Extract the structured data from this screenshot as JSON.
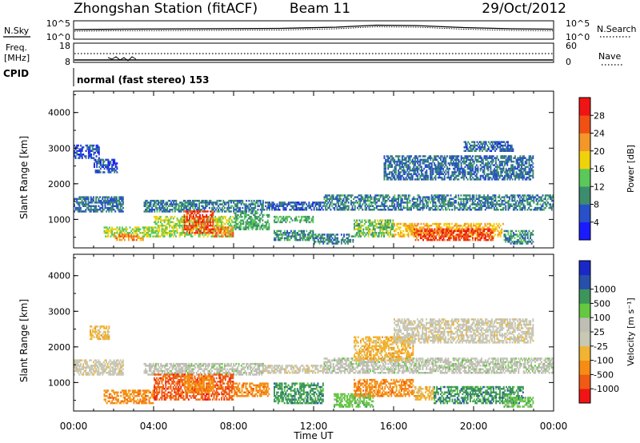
{
  "header": {
    "station": "Zhongshan Station (fitACF)",
    "beam": "Beam 11",
    "date": "29/Oct/2012"
  },
  "scan_panel": {
    "left_label": "N.Sky",
    "right_label": "N.Search",
    "left_ticks": [
      "10^5",
      "10^0"
    ],
    "right_ticks": [
      "10^5",
      "10^0"
    ]
  },
  "freq_panel": {
    "left_label_1": "Freq.",
    "left_label_2": "[MHz]",
    "right_label": "Nave",
    "left_ticks": [
      "18",
      "8"
    ],
    "right_ticks": [
      "60",
      "0"
    ]
  },
  "cpid": {
    "label": "CPID",
    "mode_text": "normal (fast stereo) 153"
  },
  "icons": {
    "dotted-line": "legend-dotted-line-icon"
  },
  "colors": {
    "power": [
      "#1a1aff",
      "#2850c8",
      "#3c8c6e",
      "#5ac85a",
      "#f0d20a",
      "#f59628",
      "#f05014",
      "#f01414"
    ],
    "velocity": [
      "#f01414",
      "#f05a14",
      "#f58c14",
      "#f0b432",
      "#c8c8b4",
      "#bebeb4",
      "#64c840",
      "#3c965a",
      "#2850aa",
      "#1a28c8"
    ]
  },
  "chart_data": [
    {
      "type": "heatmap",
      "title": "",
      "xlabel": "",
      "ylabel": "Slant Range [km]",
      "x_ticks": [
        "00:00",
        "04:00",
        "08:00",
        "12:00",
        "16:00",
        "20:00",
        "00:00"
      ],
      "y_ticks": [
        1000,
        2000,
        3000,
        4000
      ],
      "ylim": [
        200,
        4600
      ],
      "colorbar": {
        "label": "Power [dB]",
        "ticks": [
          "4",
          "8",
          "12",
          "16",
          "20",
          "24",
          "28"
        ],
        "range": [
          0,
          32
        ]
      },
      "regions": [
        {
          "t": [
            0.0,
            2.5
          ],
          "r": [
            1200,
            1650
          ],
          "v": 8
        },
        {
          "t": [
            3.5,
            9.5
          ],
          "r": [
            1200,
            1550
          ],
          "v": 9
        },
        {
          "t": [
            9.5,
            12.5
          ],
          "r": [
            1250,
            1500
          ],
          "v": 7
        },
        {
          "t": [
            12.5,
            24.0
          ],
          "r": [
            1250,
            1700
          ],
          "v": 9
        },
        {
          "t": [
            0.0,
            1.3
          ],
          "r": [
            2700,
            3100
          ],
          "v": 6
        },
        {
          "t": [
            1.0,
            2.2
          ],
          "r": [
            2300,
            2700
          ],
          "v": 6
        },
        {
          "t": [
            15.5,
            23.0
          ],
          "r": [
            2100,
            2800
          ],
          "v": 8
        },
        {
          "t": [
            19.5,
            22.0
          ],
          "r": [
            2900,
            3200
          ],
          "v": 7
        },
        {
          "t": [
            1.5,
            4.0
          ],
          "r": [
            500,
            800
          ],
          "v": 16
        },
        {
          "t": [
            2.0,
            3.5
          ],
          "r": [
            400,
            600
          ],
          "v": 22
        },
        {
          "t": [
            4.0,
            8.0
          ],
          "r": [
            500,
            1100
          ],
          "v": 16
        },
        {
          "t": [
            5.5,
            7.0
          ],
          "r": [
            600,
            1250
          ],
          "v": 27
        },
        {
          "t": [
            7.0,
            8.0
          ],
          "r": [
            500,
            800
          ],
          "v": 24
        },
        {
          "t": [
            8.0,
            9.8
          ],
          "r": [
            700,
            1200
          ],
          "v": 12
        },
        {
          "t": [
            10.0,
            12.0
          ],
          "r": [
            900,
            1100
          ],
          "v": 12
        },
        {
          "t": [
            10.0,
            12.0
          ],
          "r": [
            400,
            700
          ],
          "v": 10
        },
        {
          "t": [
            12.0,
            14.0
          ],
          "r": [
            300,
            600
          ],
          "v": 9
        },
        {
          "t": [
            14.0,
            16.0
          ],
          "r": [
            500,
            1000
          ],
          "v": 14
        },
        {
          "t": [
            16.0,
            21.5
          ],
          "r": [
            500,
            900
          ],
          "v": 20
        },
        {
          "t": [
            17.0,
            21.0
          ],
          "r": [
            400,
            750
          ],
          "v": 27
        },
        {
          "t": [
            21.5,
            23.0
          ],
          "r": [
            300,
            700
          ],
          "v": 10
        }
      ]
    },
    {
      "type": "heatmap",
      "title": "",
      "xlabel": "Time UT",
      "ylabel": "Slant Range [km]",
      "x_ticks": [
        "00:00",
        "04:00",
        "08:00",
        "12:00",
        "16:00",
        "20:00",
        "00:00"
      ],
      "y_ticks": [
        1000,
        2000,
        3000,
        4000
      ],
      "ylim": [
        200,
        4600
      ],
      "colorbar": {
        "label": "Velocity [m s⁻¹]",
        "ticks": [
          "-1000",
          "-500",
          "-100",
          "-25",
          "25",
          "100",
          "500",
          "1000"
        ]
      },
      "regions": [
        {
          "t": [
            0.0,
            2.5
          ],
          "r": [
            1200,
            1650
          ],
          "v": 4
        },
        {
          "t": [
            3.5,
            9.5
          ],
          "r": [
            1200,
            1550
          ],
          "v": 5
        },
        {
          "t": [
            9.5,
            12.5
          ],
          "r": [
            1250,
            1500
          ],
          "v": 4
        },
        {
          "t": [
            12.5,
            24.0
          ],
          "r": [
            1250,
            1700
          ],
          "v": 5
        },
        {
          "t": [
            0.8,
            1.8
          ],
          "r": [
            2200,
            2600
          ],
          "v": 3
        },
        {
          "t": [
            14.0,
            17.0
          ],
          "r": [
            1600,
            2300
          ],
          "v": 3
        },
        {
          "t": [
            16.0,
            23.0
          ],
          "r": [
            2100,
            2800
          ],
          "v": 4
        },
        {
          "t": [
            1.5,
            4.0
          ],
          "r": [
            400,
            800
          ],
          "v": 2
        },
        {
          "t": [
            4.0,
            8.0
          ],
          "r": [
            500,
            1250
          ],
          "v": 1
        },
        {
          "t": [
            5.5,
            7.0
          ],
          "r": [
            700,
            1200
          ],
          "v": 2
        },
        {
          "t": [
            8.0,
            9.8
          ],
          "r": [
            600,
            1000
          ],
          "v": 2
        },
        {
          "t": [
            10.0,
            12.5
          ],
          "r": [
            400,
            1000
          ],
          "v": 7
        },
        {
          "t": [
            13.0,
            15.0
          ],
          "r": [
            300,
            700
          ],
          "v": 6
        },
        {
          "t": [
            14.0,
            17.0
          ],
          "r": [
            600,
            1100
          ],
          "v": 2
        },
        {
          "t": [
            17.0,
            18.0
          ],
          "r": [
            500,
            900
          ],
          "v": 3
        },
        {
          "t": [
            18.0,
            22.5
          ],
          "r": [
            400,
            900
          ],
          "v": 7
        },
        {
          "t": [
            21.5,
            23.0
          ],
          "r": [
            300,
            600
          ],
          "v": 6
        }
      ]
    }
  ]
}
